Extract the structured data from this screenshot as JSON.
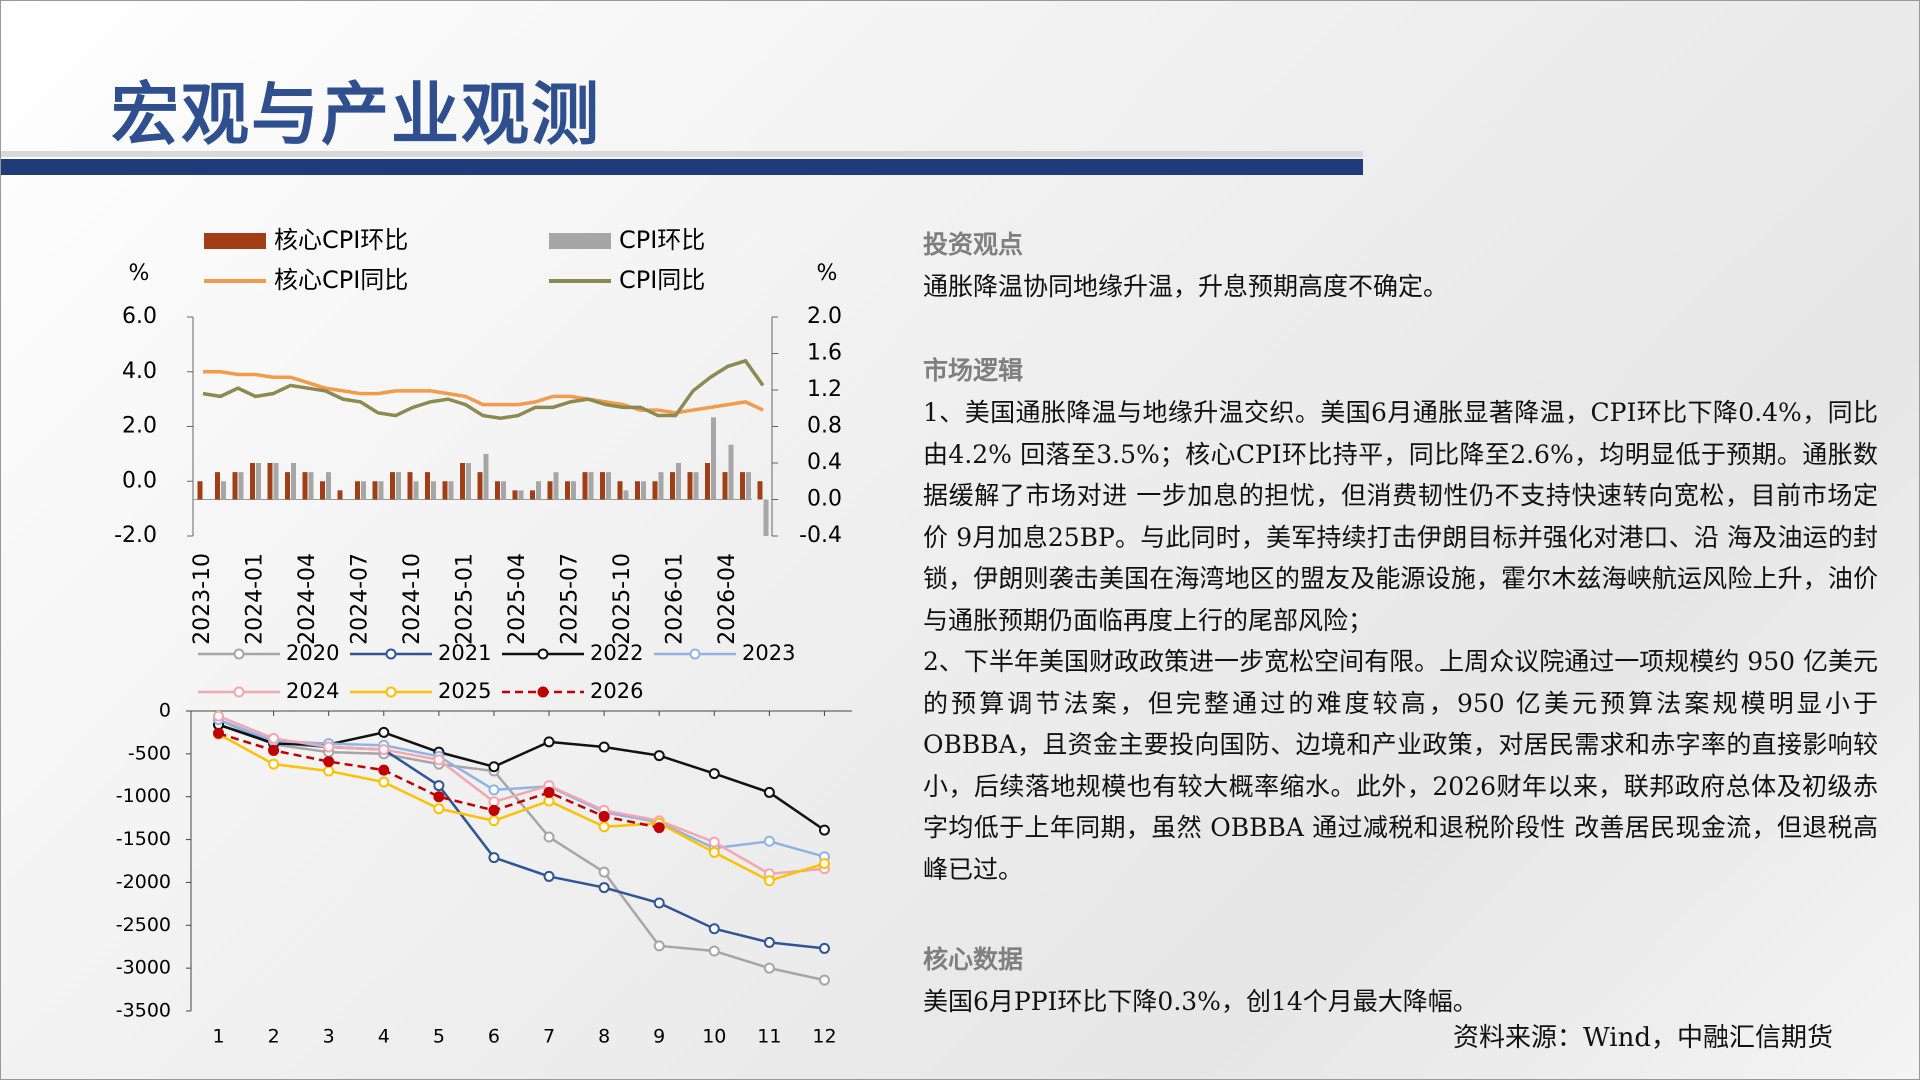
{
  "header": {
    "title": "宏观与产业观测"
  },
  "sections": [
    {
      "heading": "投资观点",
      "paragraphs": [
        "通胀降温协同地缘升温，升息预期高度不确定。"
      ]
    },
    {
      "heading": "市场逻辑",
      "paragraphs": [
        "1、美国通胀降温与地缘升温交织。美国6月通胀显著降温，CPI环比下降0.4%，同比由4.2% 回落至3.5%；核心CPI环比持平，同比降至2.6%，均明显低于预期。通胀数据缓解了市场对进 一步加息的担忧，但消费韧性仍不支持快速转向宽松，目前市场定价 9月加息25BP。与此同时，美军持续打击伊朗目标并强化对港口、沿 海及油运的封锁，伊朗则袭击美国在海湾地区的盟友及能源设施，霍尔木兹海峡航运风险上升，油价与通胀预期仍面临再度上行的尾部风险；",
        "2、下半年美国财政政策进一步宽松空间有限。上周众议院通过一项规模约 950 亿美元的预算调节法案，但完整通过的难度较高，950 亿美元预算法案规模明显小于OBBBA，且资金主要投向国防、边境和产业政策，对居民需求和赤字率的直接影响较小，后续落地规模也有较大概率缩水。此外，2026财年以来，联邦政府总体及初级赤字均低于上年同期，虽然 OBBBA 通过减税和退税阶段性 改善居民现金流，但退税高峰已过。"
      ]
    },
    {
      "heading": "核心数据",
      "paragraphs": [
        "美国6月PPI环比下降0.3%，创14个月最大降幅。"
      ]
    }
  ],
  "source": "资料来源：Wind，中融汇信期货",
  "chart_data": [
    {
      "type": "combo",
      "ylabel": "%",
      "y2label": "%",
      "categories": [
        "2023-10",
        null,
        null,
        "2024-01",
        null,
        null,
        "2024-04",
        null,
        null,
        "2024-07",
        null,
        null,
        "2024-10",
        null,
        null,
        "2025-01",
        null,
        null,
        "2025-04",
        null,
        null,
        "2025-07",
        null,
        null,
        "2025-10",
        null,
        null,
        "2026-01",
        null,
        null,
        "2026-04",
        null,
        null
      ],
      "ylim": [
        -2,
        6
      ],
      "yticks": [
        {
          "value": -2,
          "label": "-2.0"
        },
        {
          "value": 0,
          "label": "0.0"
        },
        {
          "value": 2,
          "label": "2.0"
        },
        {
          "value": 4,
          "label": "4.0"
        },
        {
          "value": 6,
          "label": "6.0"
        }
      ],
      "y2lim": [
        -0.4,
        2.0
      ],
      "y2ticks": [
        -0.4,
        {
          "value": 0,
          "label": "0.0"
        },
        0.4,
        0.8,
        1.2,
        1.6,
        {
          "value": 2,
          "label": "2.0"
        }
      ],
      "series": [
        {
          "name": "核心CPI环比",
          "kind": "bar",
          "axis": "y2",
          "color": "#a23e15",
          "values": [
            0.2,
            0.3,
            0.3,
            0.4,
            0.4,
            0.3,
            0.3,
            0.2,
            0.1,
            0.2,
            0.2,
            0.3,
            0.3,
            0.3,
            0.2,
            0.4,
            0.3,
            0.2,
            0.1,
            0.1,
            0.2,
            0.2,
            0.3,
            0.3,
            0.2,
            0.2,
            0.2,
            0.3,
            0.3,
            0.4,
            0.3,
            0.3,
            0.2
          ]
        },
        {
          "name": "CPI环比",
          "kind": "bar",
          "axis": "y2",
          "color": "#a6a6a6",
          "values": [
            0.0,
            0.2,
            0.3,
            0.4,
            0.4,
            0.4,
            0.3,
            0.3,
            0.0,
            0.2,
            0.2,
            0.3,
            0.2,
            0.2,
            0.2,
            0.4,
            0.5,
            0.2,
            0.1,
            0.2,
            0.3,
            0.2,
            0.3,
            0.3,
            0.1,
            0.2,
            0.3,
            0.4,
            0.3,
            0.9,
            0.6,
            0.3,
            -0.4
          ]
        },
        {
          "name": "核心CPI同比",
          "kind": "line",
          "color": "#f39a4b",
          "values": [
            4.0,
            4.0,
            3.9,
            3.9,
            3.8,
            3.8,
            3.6,
            3.4,
            3.3,
            3.2,
            3.2,
            3.3,
            3.3,
            3.3,
            3.2,
            3.1,
            2.8,
            2.8,
            2.8,
            2.9,
            3.1,
            3.1,
            3.0,
            2.9,
            2.8,
            2.6,
            2.6,
            2.5,
            2.6,
            2.7,
            2.8,
            2.9,
            2.6
          ]
        },
        {
          "name": "CPI同比",
          "kind": "line",
          "color": "#8c8a50",
          "values": [
            3.2,
            3.1,
            3.4,
            3.1,
            3.2,
            3.5,
            3.4,
            3.3,
            3.0,
            2.9,
            2.5,
            2.4,
            2.7,
            2.9,
            3.0,
            2.8,
            2.4,
            2.3,
            2.4,
            2.7,
            2.7,
            2.9,
            3.0,
            2.8,
            2.7,
            2.7,
            2.4,
            2.4,
            3.3,
            3.8,
            4.2,
            4.4,
            3.5
          ]
        }
      ]
    },
    {
      "type": "line",
      "x": [
        1,
        2,
        3,
        4,
        5,
        6,
        7,
        8,
        9,
        10,
        11,
        12
      ],
      "xlim": [
        0.5,
        12.5
      ],
      "xticks": [
        1,
        2,
        3,
        4,
        5,
        6,
        7,
        8,
        9,
        10,
        11,
        12
      ],
      "ylim": [
        -3500,
        0
      ],
      "yticks": [
        0,
        -500,
        -1000,
        -1500,
        -2000,
        -2500,
        -3000,
        -3500
      ],
      "series": [
        {
          "name": "2020",
          "color": "#a6a6a6",
          "values": [
            -100,
            -390,
            -480,
            -500,
            -620,
            -700,
            -1470,
            -1880,
            -2740,
            -2800,
            -3000,
            -3140
          ]
        },
        {
          "name": "2021",
          "color": "#2f5597",
          "values": [
            -160,
            -370,
            -420,
            -450,
            -870,
            -1710,
            -1930,
            -2060,
            -2240,
            -2540,
            -2700,
            -2770
          ]
        },
        {
          "name": "2022",
          "color": "#111111",
          "values": [
            -160,
            -380,
            -390,
            -250,
            -480,
            -650,
            -360,
            -420,
            -520,
            -730,
            -950,
            -1390
          ]
        },
        {
          "name": "2023",
          "color": "#8fb4e3",
          "values": [
            -100,
            -350,
            -380,
            -400,
            -530,
            -920,
            -880,
            -1180,
            -1300,
            -1600,
            -1520,
            -1700
          ]
        },
        {
          "name": "2024",
          "color": "#f4a6b0",
          "values": [
            -60,
            -320,
            -420,
            -450,
            -570,
            -1060,
            -870,
            -1160,
            -1280,
            -1530,
            -1900,
            -1840
          ]
        },
        {
          "name": "2025",
          "color": "#ffc000",
          "values": [
            -270,
            -620,
            -700,
            -830,
            -1140,
            -1280,
            -1050,
            -1350,
            -1310,
            -1650,
            -1980,
            -1780
          ]
        },
        {
          "name": "2026",
          "color": "#c00000",
          "dashed": true,
          "values": [
            -260,
            -460,
            -590,
            -690,
            -1000,
            -1160,
            -950,
            -1230,
            -1360,
            null,
            null,
            null
          ]
        }
      ]
    }
  ]
}
